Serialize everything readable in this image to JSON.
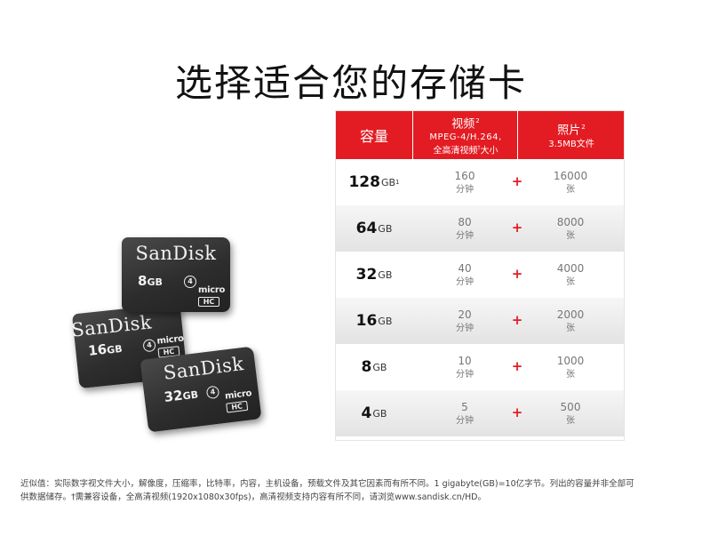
{
  "title": "选择适合您的存储卡",
  "header": {
    "capacity": "容量",
    "video_title": "视频",
    "video_sup": "2",
    "video_format": "MPEG-4/H.264,",
    "video_desc": "全高清视频",
    "video_desc_sup": "†",
    "video_desc_end": "大小",
    "photo_title": "照片",
    "photo_sup": "2",
    "photo_desc": "3.5MB文件"
  },
  "rows": [
    {
      "capacity": "128",
      "unit": "GB",
      "sup": "1",
      "video": "160",
      "video_unit": "分钟",
      "photo": "16000",
      "photo_unit": "张"
    },
    {
      "capacity": "64",
      "unit": "GB",
      "sup": "",
      "video": "80",
      "video_unit": "分钟",
      "photo": "8000",
      "photo_unit": "张"
    },
    {
      "capacity": "32",
      "unit": "GB",
      "sup": "",
      "video": "40",
      "video_unit": "分钟",
      "photo": "4000",
      "photo_unit": "张"
    },
    {
      "capacity": "16",
      "unit": "GB",
      "sup": "",
      "video": "20",
      "video_unit": "分钟",
      "photo": "2000",
      "photo_unit": "张"
    },
    {
      "capacity": "8",
      "unit": "GB",
      "sup": "",
      "video": "10",
      "video_unit": "分钟",
      "photo": "1000",
      "photo_unit": "张"
    },
    {
      "capacity": "4",
      "unit": "GB",
      "sup": "",
      "video": "5",
      "video_unit": "分钟",
      "photo": "500",
      "photo_unit": "张"
    }
  ],
  "plus_symbol": "+",
  "cards": [
    {
      "brand": "SanDisk",
      "capacity": "8",
      "unit": "GB",
      "class": "4",
      "micro": "micro",
      "hc": "HC"
    },
    {
      "brand": "SanDisk",
      "capacity": "16",
      "unit": "GB",
      "class": "4",
      "micro": "micro",
      "hc": "HC"
    },
    {
      "brand": "SanDisk",
      "capacity": "32",
      "unit": "GB",
      "class": "4",
      "micro": "micro",
      "hc": "HC"
    }
  ],
  "footnote": {
    "line1": "近似值：实际数字视文件大小，解像度，压缩率，比特率，内容，主机设备，预载文件及其它因素而有所不同。1 gigabyte(GB)=10亿字节。列出的容量并非全部可",
    "line2": "供数据储存。†需兼容设备，全高清视频(1920x1080x30fps)，高清视频支持内容有所不同，请浏览www.sandisk.cn/HD。"
  },
  "colors": {
    "accent": "#e31c23",
    "card": "#2d2d2d"
  }
}
